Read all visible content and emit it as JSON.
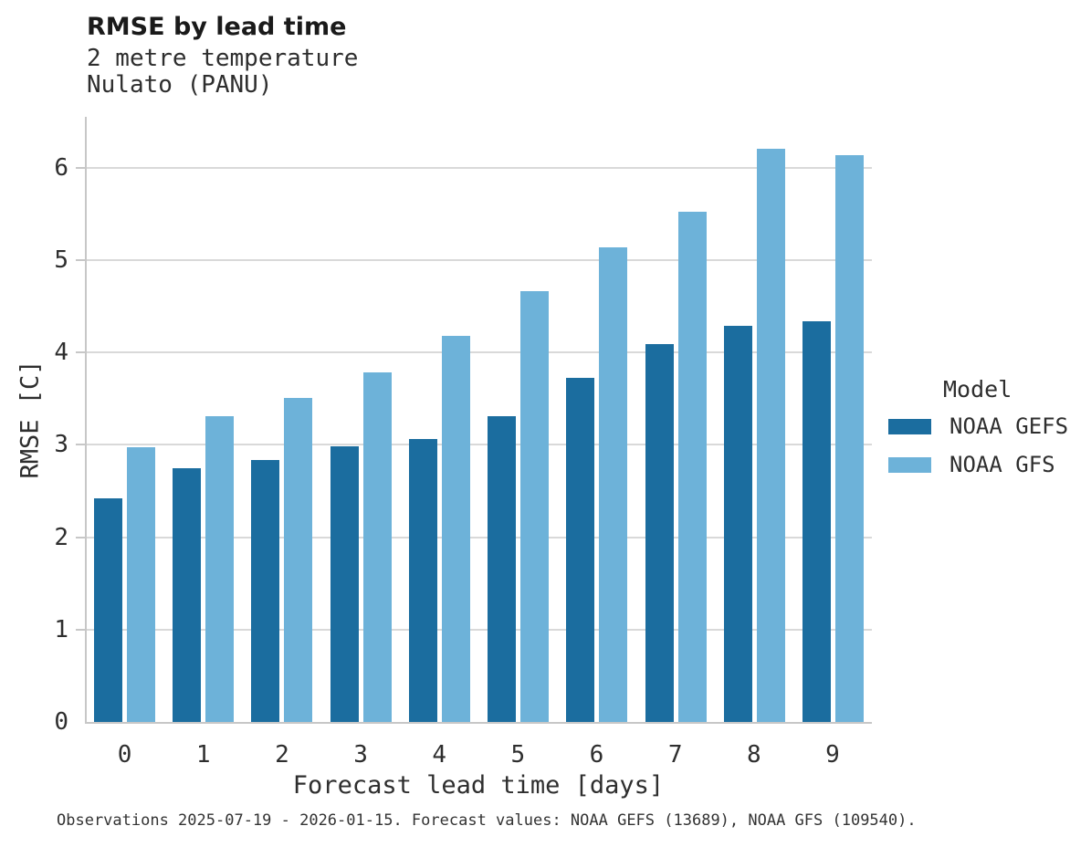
{
  "header": {
    "title": "RMSE by lead time",
    "subtitle_line1": "2 metre temperature",
    "subtitle_line2": "Nulato (PANU)"
  },
  "chart_data": {
    "type": "bar",
    "title": "RMSE by lead time",
    "subtitle": [
      "2 metre temperature",
      "Nulato (PANU)"
    ],
    "categories": [
      "0",
      "1",
      "2",
      "3",
      "4",
      "5",
      "6",
      "7",
      "8",
      "9"
    ],
    "series": [
      {
        "name": "NOAA GEFS",
        "color": "#1b6d9f",
        "values": [
          2.42,
          2.75,
          2.84,
          2.98,
          3.06,
          3.31,
          3.72,
          4.09,
          4.29,
          4.34
        ]
      },
      {
        "name": "NOAA GFS",
        "color": "#6db2d9",
        "values": [
          2.97,
          3.31,
          3.51,
          3.78,
          4.18,
          4.66,
          5.14,
          5.52,
          6.2,
          6.14
        ]
      }
    ],
    "xlabel": "Forecast lead time [days]",
    "ylabel": "RMSE [C]",
    "ylim": [
      0,
      6.55
    ],
    "yticks": [
      0,
      1,
      2,
      3,
      4,
      5,
      6
    ],
    "grid": true,
    "legend_title": "Model",
    "legend_position": "right",
    "colors": {
      "gridline": "#d9d9d9",
      "spine": "#c7c7c7",
      "text": "#2e2e2e"
    }
  },
  "footer": {
    "text": "Observations 2025-07-19 - 2026-01-15. Forecast values: NOAA GEFS (13689), NOAA GFS (109540)."
  }
}
